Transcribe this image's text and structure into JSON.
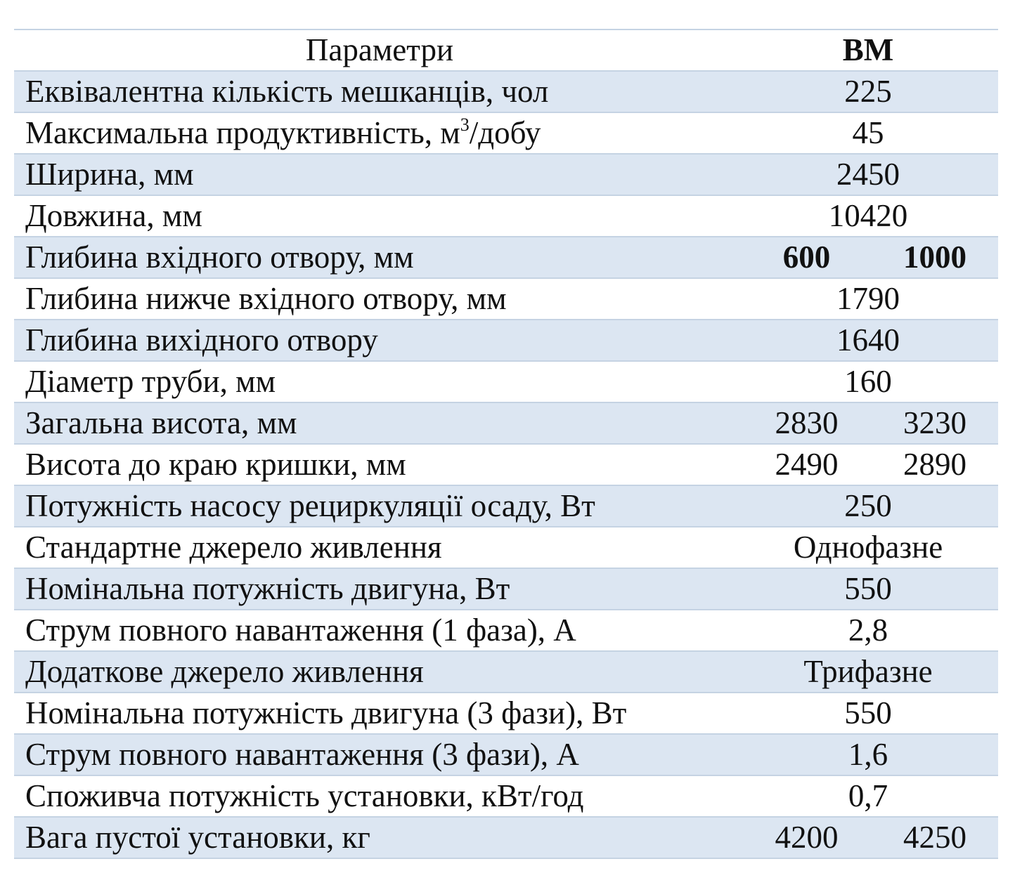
{
  "table": {
    "header": {
      "parameter": "Параметри",
      "value": "ВМ"
    },
    "rows": [
      {
        "label": "Еквівалентна кількість мешканців, чол",
        "value": "225"
      },
      {
        "label_pre": "Максимальна продуктивність, м",
        "label_sup": "3",
        "label_post": "/добу",
        "value": "45"
      },
      {
        "label": "Ширина, мм",
        "value": "2450"
      },
      {
        "label": "Довжина, мм",
        "value": "10420"
      },
      {
        "label": "Глибина вхідного отвору, мм",
        "value_a": "600",
        "value_b": "1000"
      },
      {
        "label": "Глибина нижче вхідного отвору, мм",
        "value": "1790"
      },
      {
        "label": "Глибина вихідного отвору",
        "value": "1640"
      },
      {
        "label": "Діаметр труби, мм",
        "value": "160"
      },
      {
        "label": "Загальна висота, мм",
        "value_a": "2830",
        "value_b": "3230"
      },
      {
        "label": "Висота до краю кришки, мм",
        "value_a": "2490",
        "value_b": "2890"
      },
      {
        "label": "Потужність насосу рециркуляції осаду, Вт",
        "value": "250"
      },
      {
        "label": "Стандартне джерело живлення",
        "value": "Однофазне"
      },
      {
        "label": "Номінальна потужність двигуна, Вт",
        "value": "550"
      },
      {
        "label": "Струм повного навантаження (1 фаза), А",
        "value": "2,8"
      },
      {
        "label": "Додаткове джерело живлення",
        "value": "Трифазне"
      },
      {
        "label": "Номінальна потужність двигуна (3 фази), Вт",
        "value": "550"
      },
      {
        "label": "Струм повного навантаження (3 фази), А",
        "value": "1,6"
      },
      {
        "label": "Споживча потужність установки, кВт/год",
        "value": "0,7"
      },
      {
        "label": "Вага пустої установки, кг",
        "value_a": "4200",
        "value_b": "4250"
      }
    ]
  },
  "colors": {
    "shade": "#dce6f2",
    "rule": "#c5d3e3",
    "text": "#111111"
  }
}
